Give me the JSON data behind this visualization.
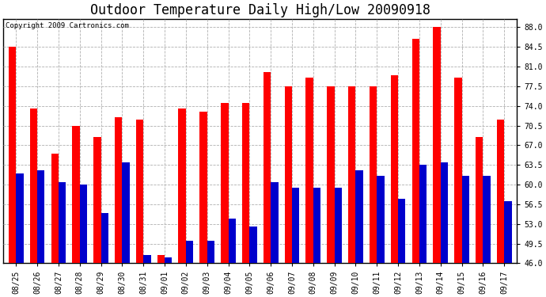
{
  "title": "Outdoor Temperature Daily High/Low 20090918",
  "copyright": "Copyright 2009 Cartronics.com",
  "dates": [
    "08/25",
    "08/26",
    "08/27",
    "08/28",
    "08/29",
    "08/30",
    "08/31",
    "09/01",
    "09/02",
    "09/03",
    "09/04",
    "09/05",
    "09/06",
    "09/07",
    "09/08",
    "09/09",
    "09/10",
    "09/11",
    "09/12",
    "09/13",
    "09/14",
    "09/15",
    "09/16",
    "09/17"
  ],
  "highs": [
    84.5,
    73.5,
    65.5,
    70.5,
    68.5,
    72.0,
    71.5,
    47.5,
    73.5,
    73.0,
    74.5,
    74.5,
    80.0,
    77.5,
    79.0,
    77.5,
    77.5,
    77.5,
    79.5,
    86.0,
    88.0,
    79.0,
    68.5,
    71.5
  ],
  "lows": [
    62.0,
    62.5,
    60.5,
    60.0,
    55.0,
    64.0,
    47.5,
    47.0,
    50.0,
    50.0,
    54.0,
    52.5,
    60.5,
    59.5,
    59.5,
    59.5,
    62.5,
    61.5,
    57.5,
    63.5,
    64.0,
    61.5,
    61.5,
    57.0
  ],
  "bar_width": 0.35,
  "ymin": 46.0,
  "ylim": [
    46.0,
    89.5
  ],
  "yticks": [
    46.0,
    49.5,
    53.0,
    56.5,
    60.0,
    63.5,
    67.0,
    70.5,
    74.0,
    77.5,
    81.0,
    84.5,
    88.0
  ],
  "high_color": "#ff0000",
  "low_color": "#0000cc",
  "bg_color": "#ffffff",
  "plot_bg_color": "#ffffff",
  "grid_color": "#b0b0b0",
  "title_fontsize": 12,
  "tick_fontsize": 7,
  "copyright_fontsize": 6.5
}
